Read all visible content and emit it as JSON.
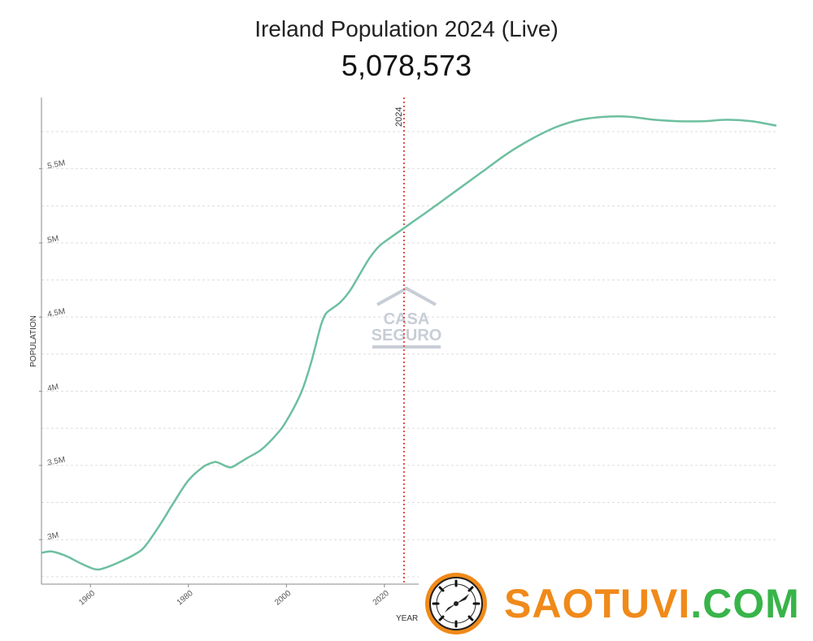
{
  "title": "Ireland Population 2024 (Live)",
  "live_value": "5,078,573",
  "colors": {
    "line": "#6dbf9f",
    "marker": "#d9534f",
    "grid": "#dddddd"
  },
  "watermark": {
    "line1": "CASA",
    "line2": "SEGURO"
  },
  "brand": {
    "name": "SAOTUVI",
    "tld": ".COM",
    "icon": "clock-icon"
  },
  "chart_data": {
    "type": "line",
    "title": "Ireland Population 2024 (Live)",
    "xlabel": "YEAR",
    "ylabel": "POPULATION",
    "xlim": [
      1950,
      2100
    ],
    "ylim": [
      2700000,
      5980000
    ],
    "x_ticks": [
      1960,
      1980,
      2000,
      2020
    ],
    "y_ticks": [
      {
        "value": 3000000,
        "label": "3M"
      },
      {
        "value": 3500000,
        "label": "3.5M"
      },
      {
        "value": 4000000,
        "label": "4M"
      },
      {
        "value": 4500000,
        "label": "4.5M"
      },
      {
        "value": 5000000,
        "label": "5M"
      },
      {
        "value": 5500000,
        "label": "5.5M"
      }
    ],
    "grid": true,
    "marker": {
      "x": 2024,
      "label": "2024"
    },
    "series": [
      {
        "x": [
          1950,
          1952,
          1955,
          1958,
          1961,
          1963,
          1966,
          1969,
          1971,
          1974,
          1977,
          1980,
          1983,
          1985,
          1986,
          1988,
          1989,
          1990,
          1992,
          1995,
          1998,
          2000,
          2003,
          2005,
          2007,
          2008,
          2009,
          2011,
          2013,
          2015,
          2017,
          2019,
          2021,
          2024,
          2027,
          2030,
          2035,
          2040,
          2045,
          2050,
          2055,
          2060,
          2065,
          2070,
          2075,
          2080,
          2085,
          2090,
          2095,
          2100
        ],
        "y": [
          2910000,
          2920000,
          2890000,
          2840000,
          2800000,
          2810000,
          2850000,
          2900000,
          2950000,
          3090000,
          3250000,
          3400000,
          3490000,
          3520000,
          3520000,
          3490000,
          3490000,
          3510000,
          3550000,
          3610000,
          3710000,
          3800000,
          3990000,
          4190000,
          4440000,
          4520000,
          4550000,
          4600000,
          4680000,
          4790000,
          4900000,
          4980000,
          5030000,
          5100000,
          5170000,
          5240000,
          5360000,
          5480000,
          5600000,
          5700000,
          5780000,
          5830000,
          5850000,
          5850000,
          5830000,
          5820000,
          5820000,
          5830000,
          5820000,
          5790000
        ]
      }
    ]
  }
}
